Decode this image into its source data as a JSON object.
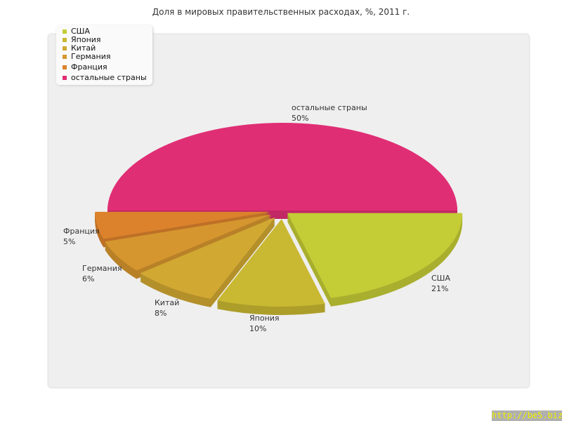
{
  "chart_data": {
    "type": "pie",
    "title": "Доля в мировых правительственных расходах, %, 2011 г.",
    "slices": [
      {
        "label": "США",
        "value": 21,
        "pct_label": "21%",
        "color": "#c4cc36"
      },
      {
        "label": "Япония",
        "value": 10,
        "pct_label": "10%",
        "color": "#c9b832"
      },
      {
        "label": "Китай",
        "value": 8,
        "pct_label": "8%",
        "color": "#d1a832"
      },
      {
        "label": "Германия",
        "value": 6,
        "pct_label": "6%",
        "color": "#d6962f"
      },
      {
        "label": "Франция",
        "value": 5,
        "pct_label": "5%",
        "color": "#dc822c"
      },
      {
        "label": "остальные страны",
        "value": 50,
        "pct_label": "50%",
        "color": "#e02e74"
      }
    ],
    "legend_position": "top-left"
  },
  "watermark": "http://be5.biz/"
}
